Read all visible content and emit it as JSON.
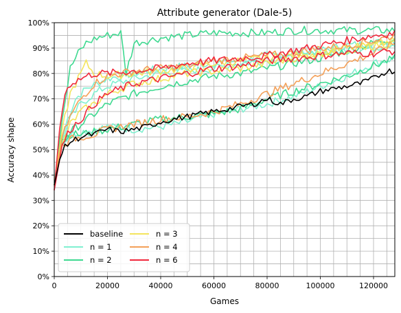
{
  "chart_data": {
    "type": "line",
    "title": "Attribute generator (Dale-5)",
    "xlabel": "Games",
    "ylabel": "Accuracy shape",
    "xlim": [
      0,
      128000
    ],
    "ylim": [
      0,
      100
    ],
    "x_ticks": [
      0,
      20000,
      40000,
      60000,
      80000,
      100000,
      120000
    ],
    "x_tick_labels": [
      "0",
      "20000",
      "40000",
      "60000",
      "80000",
      "100000",
      "120000"
    ],
    "y_ticks": [
      0,
      10,
      20,
      30,
      40,
      50,
      60,
      70,
      80,
      90,
      100
    ],
    "y_tick_labels": [
      "0%",
      "10%",
      "20%",
      "30%",
      "40%",
      "50%",
      "60%",
      "70%",
      "80%",
      "90%",
      "100%"
    ],
    "grid": true,
    "legend_position": "lower-left",
    "legend_columns": 2,
    "series": [
      {
        "name": "baseline",
        "color": "#000000",
        "x": [
          0,
          2000,
          4000,
          6000,
          8000,
          10000,
          15000,
          20000,
          25000,
          30000,
          35000,
          40000,
          45000,
          50000,
          55000,
          60000,
          65000,
          70000,
          75000,
          80000,
          85000,
          90000,
          95000,
          100000,
          105000,
          110000,
          115000,
          120000,
          125000,
          128000
        ],
        "y": [
          36,
          46,
          51,
          53,
          54,
          55,
          56,
          58,
          57,
          58,
          59,
          61,
          62,
          63,
          64,
          65,
          66,
          67,
          68,
          70,
          68,
          70,
          71,
          73,
          74,
          75,
          76,
          78,
          81,
          81
        ]
      },
      {
        "name": "n = 1",
        "color": "#7ff0d0",
        "runs": [
          {
            "x": [
              0,
              2000,
              5000,
              8000,
              12000,
              20000,
              30000,
              40000,
              50000,
              60000,
              70000,
              80000,
              90000,
              100000,
              110000,
              120000,
              128000
            ],
            "y": [
              38,
              50,
              62,
              70,
              74,
              78,
              80,
              82,
              83,
              84,
              85,
              87,
              88,
              89,
              91,
              92,
              93
            ]
          },
          {
            "x": [
              0,
              3000,
              6000,
              10000,
              15000,
              20000,
              30000,
              40000,
              50000,
              60000,
              70000,
              80000,
              90000,
              100000,
              110000,
              120000,
              128000
            ],
            "y": [
              37,
              52,
              56,
              57,
              58,
              59,
              58,
              59,
              61,
              64,
              66,
              68,
              71,
              75,
              79,
              84,
              86
            ]
          },
          {
            "x": [
              0,
              3000,
              6000,
              10000,
              15000,
              20000,
              30000,
              40000,
              50000,
              60000,
              70000,
              80000,
              90000,
              100000,
              110000,
              120000,
              128000
            ],
            "y": [
              36,
              54,
              62,
              68,
              72,
              75,
              78,
              80,
              81,
              82,
              84,
              85,
              86,
              88,
              89,
              90,
              92
            ]
          }
        ]
      },
      {
        "name": "n = 2",
        "color": "#3ed990",
        "runs": [
          {
            "x": [
              0,
              3000,
              6000,
              9000,
              12000,
              16000,
              20000,
              25000,
              27000,
              30000,
              40000,
              50000,
              60000,
              70000,
              80000,
              90000,
              100000,
              110000,
              120000,
              128000
            ],
            "y": [
              36,
              62,
              82,
              88,
              92,
              94,
              95,
              96,
              80,
              92,
              94,
              95,
              96,
              96,
              96,
              97,
              97,
              97,
              97,
              97
            ]
          },
          {
            "x": [
              0,
              3000,
              6000,
              10000,
              15000,
              20000,
              25000,
              30000,
              40000,
              50000,
              60000,
              70000,
              80000,
              90000,
              100000,
              110000,
              120000,
              128000
            ],
            "y": [
              36,
              52,
              57,
              60,
              64,
              68,
              70,
              72,
              75,
              77,
              79,
              80,
              82,
              84,
              86,
              89,
              92,
              94
            ]
          },
          {
            "x": [
              0,
              3000,
              6000,
              10000,
              15000,
              20000,
              30000,
              40000,
              50000,
              60000,
              70000,
              80000,
              90000,
              100000,
              110000,
              120000,
              128000
            ],
            "y": [
              36,
              54,
              56,
              56,
              57,
              58,
              60,
              62,
              63,
              64,
              66,
              70,
              73,
              76,
              79,
              83,
              86
            ]
          }
        ]
      },
      {
        "name": "n = 3",
        "color": "#f3e45c",
        "runs": [
          {
            "x": [
              0,
              3000,
              6000,
              9000,
              12000,
              15000,
              20000,
              30000,
              40000,
              50000,
              60000,
              70000,
              80000,
              90000,
              100000,
              110000,
              120000,
              128000
            ],
            "y": [
              36,
              58,
              72,
              78,
              84,
              80,
              79,
              80,
              81,
              82,
              84,
              85,
              86,
              87,
              88,
              90,
              91,
              92
            ]
          },
          {
            "x": [
              0,
              3000,
              6000,
              10000,
              15000,
              20000,
              30000,
              40000,
              50000,
              60000,
              70000,
              80000,
              90000,
              100000,
              110000,
              120000,
              128000
            ],
            "y": [
              36,
              52,
              60,
              65,
              68,
              72,
              76,
              78,
              80,
              81,
              82,
              84,
              86,
              88,
              89,
              91,
              93
            ]
          }
        ]
      },
      {
        "name": "n = 4",
        "color": "#f4a058",
        "runs": [
          {
            "x": [
              0,
              3000,
              6000,
              10000,
              15000,
              20000,
              30000,
              40000,
              50000,
              60000,
              70000,
              80000,
              90000,
              100000,
              110000,
              120000,
              128000
            ],
            "y": [
              36,
              55,
              63,
              70,
              76,
              79,
              81,
              82,
              83,
              85,
              86,
              87,
              88,
              90,
              91,
              93,
              95
            ]
          },
          {
            "x": [
              0,
              3000,
              6000,
              10000,
              15000,
              20000,
              30000,
              40000,
              50000,
              60000,
              70000,
              80000,
              90000,
              100000,
              110000,
              120000,
              128000
            ],
            "y": [
              36,
              52,
              54,
              55,
              56,
              58,
              60,
              62,
              63,
              65,
              68,
              72,
              76,
              80,
              84,
              88,
              92
            ]
          }
        ]
      },
      {
        "name": "n = 6",
        "color": "#f0283c",
        "runs": [
          {
            "x": [
              0,
              2000,
              4000,
              6000,
              10000,
              15000,
              20000,
              30000,
              40000,
              50000,
              60000,
              70000,
              80000,
              90000,
              100000,
              110000,
              120000,
              128000
            ],
            "y": [
              34,
              58,
              72,
              76,
              78,
              80,
              80,
              81,
              82,
              84,
              85,
              86,
              87,
              89,
              91,
              93,
              95,
              96
            ]
          },
          {
            "x": [
              0,
              3000,
              6000,
              10000,
              15000,
              20000,
              30000,
              40000,
              50000,
              60000,
              70000,
              80000,
              90000,
              100000,
              110000,
              120000,
              128000
            ],
            "y": [
              34,
              52,
              58,
              62,
              68,
              72,
              76,
              78,
              80,
              82,
              83,
              85,
              86,
              87,
              88,
              88,
              89
            ]
          }
        ]
      }
    ]
  }
}
